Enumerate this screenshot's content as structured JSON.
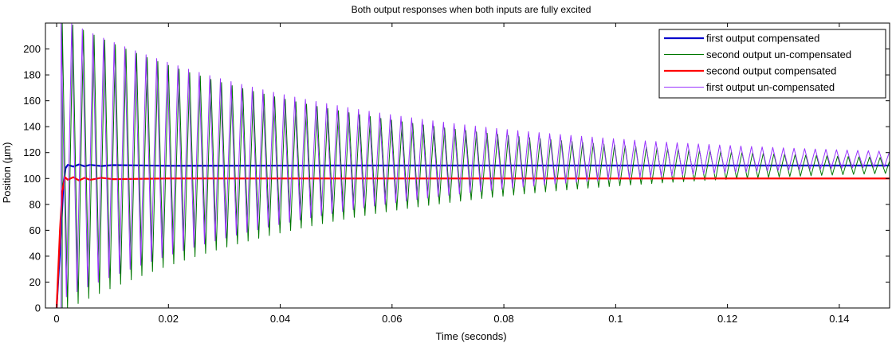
{
  "chart_data": {
    "type": "line",
    "title": "Both output responses when both inputs are fully excited",
    "xlabel": "Time (seconds)",
    "ylabel": "Position (µm)",
    "xlim": [
      -0.002,
      0.149
    ],
    "ylim": [
      0,
      220
    ],
    "xticks": [
      0,
      0.02,
      0.04,
      0.06,
      0.08,
      0.1,
      0.12,
      0.14
    ],
    "xtick_labels": [
      "0",
      "0.02",
      "0.04",
      "0.06",
      "0.08",
      "0.1",
      "0.12",
      "0.14"
    ],
    "yticks": [
      0,
      20,
      40,
      60,
      80,
      100,
      120,
      140,
      160,
      180,
      200
    ],
    "ytick_labels": [
      "0",
      "20",
      "40",
      "60",
      "80",
      "100",
      "120",
      "140",
      "160",
      "180",
      "200"
    ],
    "grid": false,
    "legend_position": "top-right",
    "series": [
      {
        "name": "first output compensated",
        "color": "#0000cc",
        "stroke_width": 2.2,
        "behavior": "step response settling at 110 after a small overshoot",
        "x": [
          0,
          0.0008,
          0.0012,
          0.0016,
          0.002,
          0.003,
          0.004,
          0.005,
          0.006,
          0.008,
          0.01,
          0.02,
          0.05,
          0.1,
          0.149
        ],
        "y": [
          0,
          60,
          95,
          108,
          110.5,
          109.2,
          110.8,
          109.4,
          110.5,
          109.6,
          110.3,
          109.8,
          110,
          110,
          110
        ]
      },
      {
        "name": "second output un-compensated",
        "color": "#007700",
        "stroke_width": 1,
        "behavior": "decaying oscillation around 110",
        "mean": 110,
        "amplitude_start": 115,
        "amplitude_end": 6,
        "period": 0.0019,
        "start": 0.001
      },
      {
        "name": "second output compensated",
        "color": "#ff0000",
        "stroke_width": 2.2,
        "behavior": "step response settling at 100 with small ripple until about 0.11",
        "x": [
          0,
          0.0006,
          0.001,
          0.0015,
          0.002,
          0.003,
          0.004,
          0.005,
          0.006,
          0.008,
          0.01,
          0.02,
          0.05,
          0.08,
          0.11,
          0.149
        ],
        "y": [
          0,
          60,
          90,
          101,
          99,
          101,
          98.5,
          100.5,
          99,
          100.5,
          99.5,
          100,
          100,
          100,
          100,
          100
        ]
      },
      {
        "name": "first output un-compensated",
        "color": "#9933ff",
        "stroke_width": 1,
        "behavior": "decaying oscillation around 115",
        "mean": 115,
        "amplitude_start": 110,
        "amplitude_end": 6,
        "period": 0.0019,
        "start": 0.0008
      }
    ]
  }
}
